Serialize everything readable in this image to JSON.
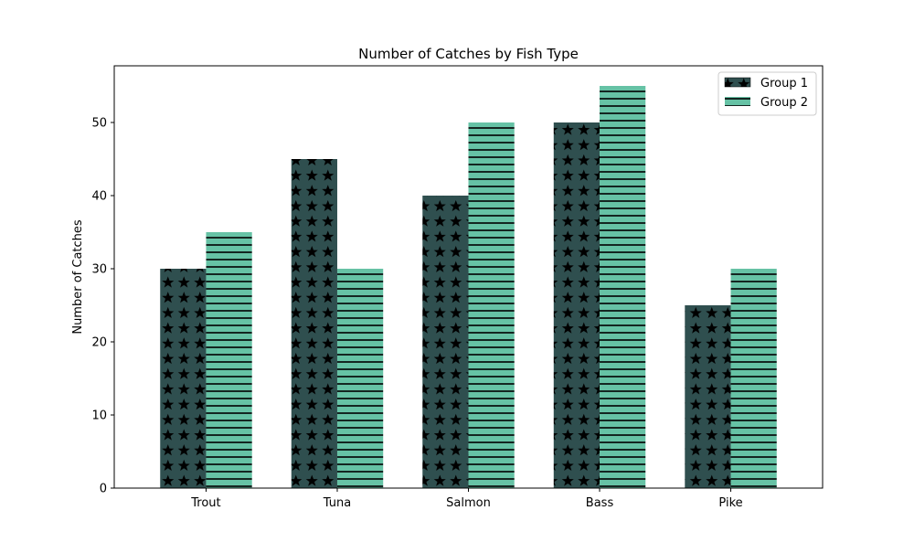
{
  "chart_data": {
    "type": "bar",
    "title": "Number of Catches by Fish Type",
    "xlabel": "",
    "ylabel": "Number of Catches",
    "categories": [
      "Trout",
      "Tuna",
      "Salmon",
      "Bass",
      "Pike"
    ],
    "series": [
      {
        "name": "Group 1",
        "values": [
          30,
          45,
          40,
          50,
          25
        ],
        "color": "#2f4f4f",
        "pattern": "stars"
      },
      {
        "name": "Group 2",
        "values": [
          35,
          30,
          50,
          55,
          30
        ],
        "color": "#66c2a5",
        "pattern": "horizontal-lines"
      }
    ],
    "ylim": [
      0,
      57.75
    ],
    "yticks": [
      0,
      10,
      20,
      30,
      40,
      50
    ],
    "grid": false,
    "legend_position": "top-right"
  }
}
